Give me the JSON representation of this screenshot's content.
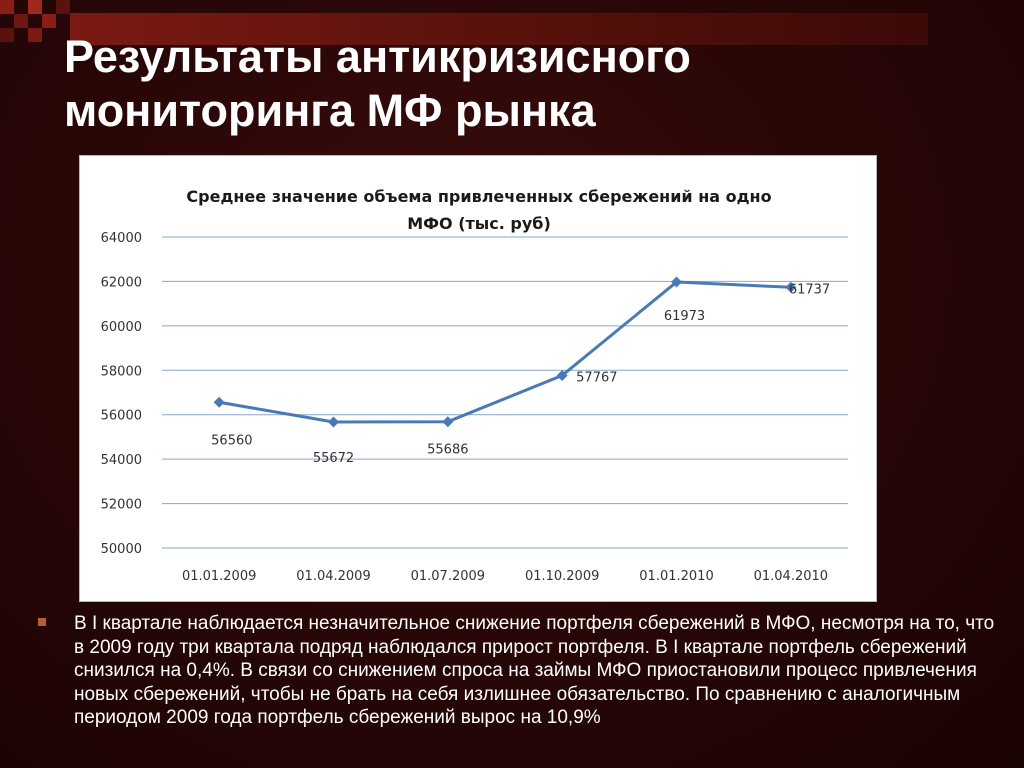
{
  "slide": {
    "title_line1": "Результаты антикризисного",
    "title_line2": "мониторинга МФ рынка",
    "bullet_text": "В I квартале наблюдается незначительное снижение портфеля сбережений в МФО, несмотря на то, что в 2009 году три квартала подряд наблюдался прирост портфеля. В I квартале портфель сбережений снизился на 0,4%. В связи со снижением спроса на займы МФО приостановили процесс привлечения новых сбережений, чтобы не брать на себя излишнее обязательство. По сравнению с аналогичным периодом 2009 года портфель сбережений вырос на 10,9%"
  },
  "colors": {
    "background": "#2a0707",
    "accent_bar": "#7a1a12",
    "bullet": "#b85a32",
    "series_line": "#4a7ab5",
    "gridline": "#8aa6cc"
  },
  "chart_data": {
    "type": "line",
    "title_line1": "Среднее значение объема привлеченных сбережений на одно",
    "title_line2": "МФО (тыс. руб)",
    "categories": [
      "01.01.2009",
      "01.04.2009",
      "01.07.2009",
      "01.10.2009",
      "01.01.2010",
      "01.04.2010"
    ],
    "series": [
      {
        "values": [
          56560,
          55672,
          55686,
          57767,
          61973,
          61737
        ],
        "data_labels": [
          "56560",
          "55672",
          "55686",
          "57767",
          "61973",
          "61737"
        ]
      }
    ],
    "y_ticks": [
      "50000",
      "52000",
      "54000",
      "56000",
      "58000",
      "60000",
      "62000",
      "64000"
    ],
    "ylim": [
      50000,
      64000
    ],
    "grid": true,
    "legend": "none",
    "marker": "diamond"
  }
}
